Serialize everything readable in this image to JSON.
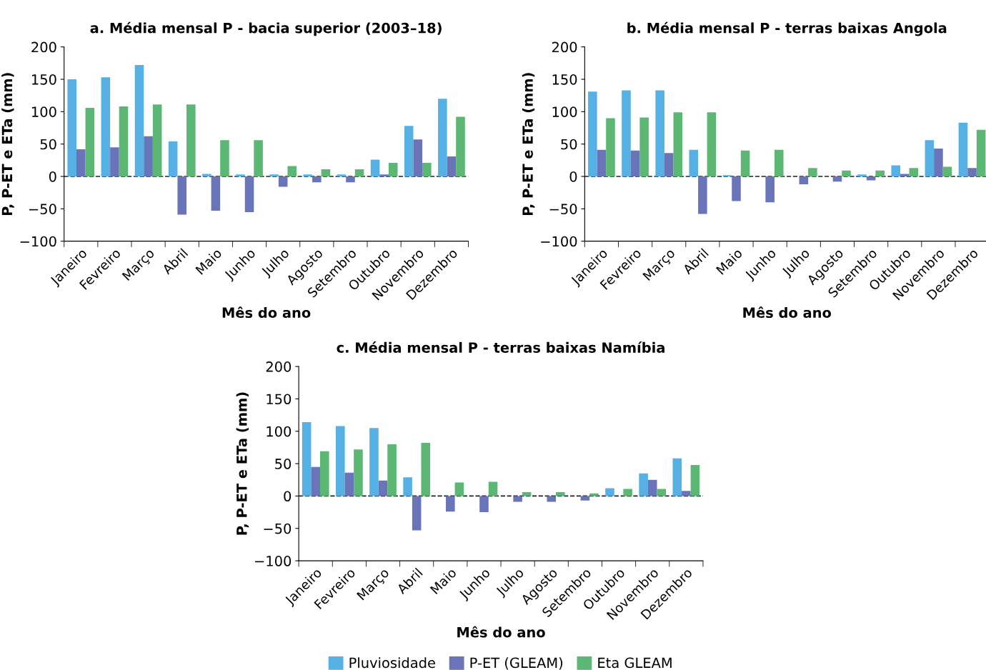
{
  "chart_data": [
    {
      "type": "bar",
      "title": "a. Média mensal P - bacia superior (2003–18)",
      "xlabel": "Mês do ano",
      "ylabel": "P, P-ET e ETa (mm)",
      "categories": [
        "Janeiro",
        "Fevreiro",
        "Março",
        "Abril",
        "Maio",
        "Junho",
        "Julho",
        "Agosto",
        "Setembro",
        "Outubro",
        "Novembro",
        "Dezembro"
      ],
      "series": [
        {
          "color": "#56b0e3",
          "values": [
            150,
            153,
            172,
            54,
            4,
            3,
            3,
            3,
            3,
            26,
            78,
            120
          ]
        },
        {
          "color": "#6a74b9",
          "values": [
            42,
            45,
            62,
            -59,
            -53,
            -55,
            -16,
            -9,
            -9,
            3,
            57,
            31
          ]
        },
        {
          "color": "#5cb774",
          "values": [
            106,
            108,
            111,
            111,
            56,
            56,
            16,
            11,
            11,
            21,
            21,
            92
          ]
        }
      ],
      "ylim": [
        -100,
        200
      ],
      "yticks": [
        -100,
        -50,
        0,
        50,
        100,
        150,
        200
      ],
      "grid": false,
      "ref_lines": [
        {
          "axis": "y",
          "value": 0,
          "line_style": "dashed",
          "color": "#222222"
        }
      ]
    },
    {
      "type": "bar",
      "title": "b. Média mensal P - terras baixas Angola",
      "xlabel": "Mês do ano",
      "ylabel": "P, P-ET e ETa (mm)",
      "categories": [
        "Janeiro",
        "Fevreiro",
        "Março",
        "Abril",
        "Maio",
        "Junho",
        "Julho",
        "Agosto",
        "Setembro",
        "Outubro",
        "Novembro",
        "Dezembro"
      ],
      "series": [
        {
          "color": "#56b0e3",
          "values": [
            131,
            133,
            133,
            41,
            2,
            0,
            0,
            0,
            3,
            17,
            56,
            83
          ]
        },
        {
          "color": "#6a74b9",
          "values": [
            41,
            40,
            36,
            -58,
            -38,
            -40,
            -12,
            -8,
            -6,
            4,
            43,
            13
          ]
        },
        {
          "color": "#5cb774",
          "values": [
            90,
            91,
            99,
            99,
            40,
            41,
            13,
            9,
            9,
            13,
            15,
            72
          ]
        }
      ],
      "ylim": [
        -100,
        200
      ],
      "yticks": [
        -100,
        -50,
        0,
        50,
        100,
        150,
        200
      ],
      "grid": false,
      "ref_lines": [
        {
          "axis": "y",
          "value": 0,
          "line_style": "dashed",
          "color": "#222222"
        }
      ]
    },
    {
      "type": "bar",
      "title": "c. Média mensal P - terras baixas Namíbia",
      "xlabel": "Mês do ano",
      "ylabel": "P, P-ET e ETa (mm)",
      "categories": [
        "Janeiro",
        "Fevreiro",
        "Março",
        "Abril",
        "Maio",
        "Junho",
        "Julho",
        "Agosto",
        "Setembro",
        "Outubro",
        "Novembro",
        "Dezembro"
      ],
      "series": [
        {
          "name": "Pluviosidade",
          "color": "#56b0e3",
          "values": [
            114,
            108,
            105,
            29,
            0,
            0,
            0,
            0,
            0,
            12,
            35,
            58
          ]
        },
        {
          "name": "P-ET (GLEAM)",
          "color": "#6a74b9",
          "values": [
            45,
            36,
            24,
            -53,
            -24,
            -25,
            -9,
            -9,
            -7,
            0,
            25,
            8
          ]
        },
        {
          "name": "Eta GLEAM",
          "color": "#5cb774",
          "values": [
            69,
            72,
            80,
            82,
            21,
            22,
            6,
            6,
            4,
            11,
            11,
            48
          ]
        }
      ],
      "ylim": [
        -100,
        200
      ],
      "yticks": [
        -100,
        -50,
        0,
        50,
        100,
        150,
        200
      ],
      "grid": false,
      "legend": "bottom",
      "ref_lines": [
        {
          "axis": "y",
          "value": 0,
          "line_style": "dashed",
          "color": "#222222"
        }
      ]
    }
  ]
}
